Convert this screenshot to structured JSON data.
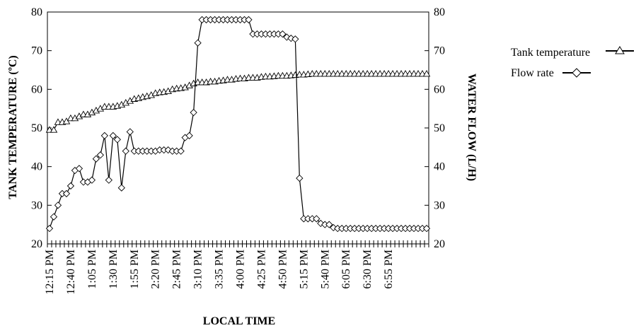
{
  "chart_data": {
    "type": "line",
    "xlabel": "LOCAL TIME",
    "ylabel_left": "TANK TEMPERATURE (ºC)",
    "ylabel_right": "WATER FLOW (L/H)",
    "ylim_left": [
      20,
      80
    ],
    "ylim_right": [
      20,
      80
    ],
    "yticks": [
      "20",
      "30",
      "40",
      "50",
      "60",
      "70",
      "80"
    ],
    "x_step_minutes": 5,
    "x_tick_labels": [
      "12:15 PM",
      "12:40 PM",
      "1:05 PM",
      "1:30 PM",
      "1:55 PM",
      "2:20 PM",
      "2:45 PM",
      "3:10 PM",
      "3:35 PM",
      "4:00 PM",
      "4:25 PM",
      "4:50 PM",
      "5:15 PM",
      "5:40 PM",
      "6:05 PM",
      "6:30 PM",
      "6:55 PM"
    ],
    "grid": false,
    "legend_position": "right",
    "series": [
      {
        "name": "Tank temperature",
        "marker": "triangle",
        "axis": "left",
        "values": [
          49.5,
          49.5,
          51.5,
          51.5,
          51.7,
          52.5,
          52.5,
          53,
          53.5,
          53.5,
          54,
          54.5,
          55,
          55.5,
          55.5,
          55.5,
          55.7,
          56,
          56.5,
          57,
          57.5,
          57.7,
          58,
          58.2,
          58.5,
          59,
          59.2,
          59.3,
          59.5,
          60,
          60.2,
          60.3,
          60.5,
          61,
          61.5,
          61.8,
          61.8,
          61.8,
          62,
          62,
          62.2,
          62.3,
          62.5,
          62.5,
          62.7,
          62.8,
          62.8,
          63,
          63,
          63,
          63.2,
          63.3,
          63.3,
          63.4,
          63.5,
          63.5,
          63.5,
          63.6,
          63.7,
          63.8,
          63.8,
          63.9,
          64,
          64,
          64,
          64,
          64,
          64,
          64,
          64,
          64,
          64,
          64,
          64,
          64,
          64,
          64,
          64,
          64,
          64,
          64,
          64,
          64,
          64,
          64,
          64,
          64,
          64,
          64,
          64
        ]
      },
      {
        "name": "Flow rate",
        "marker": "diamond",
        "axis": "right",
        "values": [
          24,
          27,
          30,
          33,
          33,
          35,
          39,
          39.5,
          36,
          36,
          36.5,
          42,
          43,
          48,
          36.5,
          48,
          47,
          34.5,
          44,
          49,
          44,
          44,
          44,
          44,
          44,
          44,
          44.3,
          44.3,
          44.3,
          44,
          44,
          44,
          47.5,
          48,
          54,
          72,
          78,
          78,
          78,
          78,
          78,
          78,
          78,
          78,
          78,
          78,
          78,
          78,
          74.3,
          74.3,
          74.3,
          74.3,
          74.3,
          74.3,
          74.3,
          74.3,
          73.5,
          73.2,
          73,
          37,
          26.5,
          26.5,
          26.5,
          26.5,
          25.3,
          25,
          25,
          24.2,
          24,
          24,
          24,
          24,
          24,
          24,
          24,
          24,
          24,
          24,
          24,
          24,
          24,
          24,
          24,
          24,
          24,
          24,
          24,
          24,
          24,
          24
        ]
      }
    ]
  }
}
